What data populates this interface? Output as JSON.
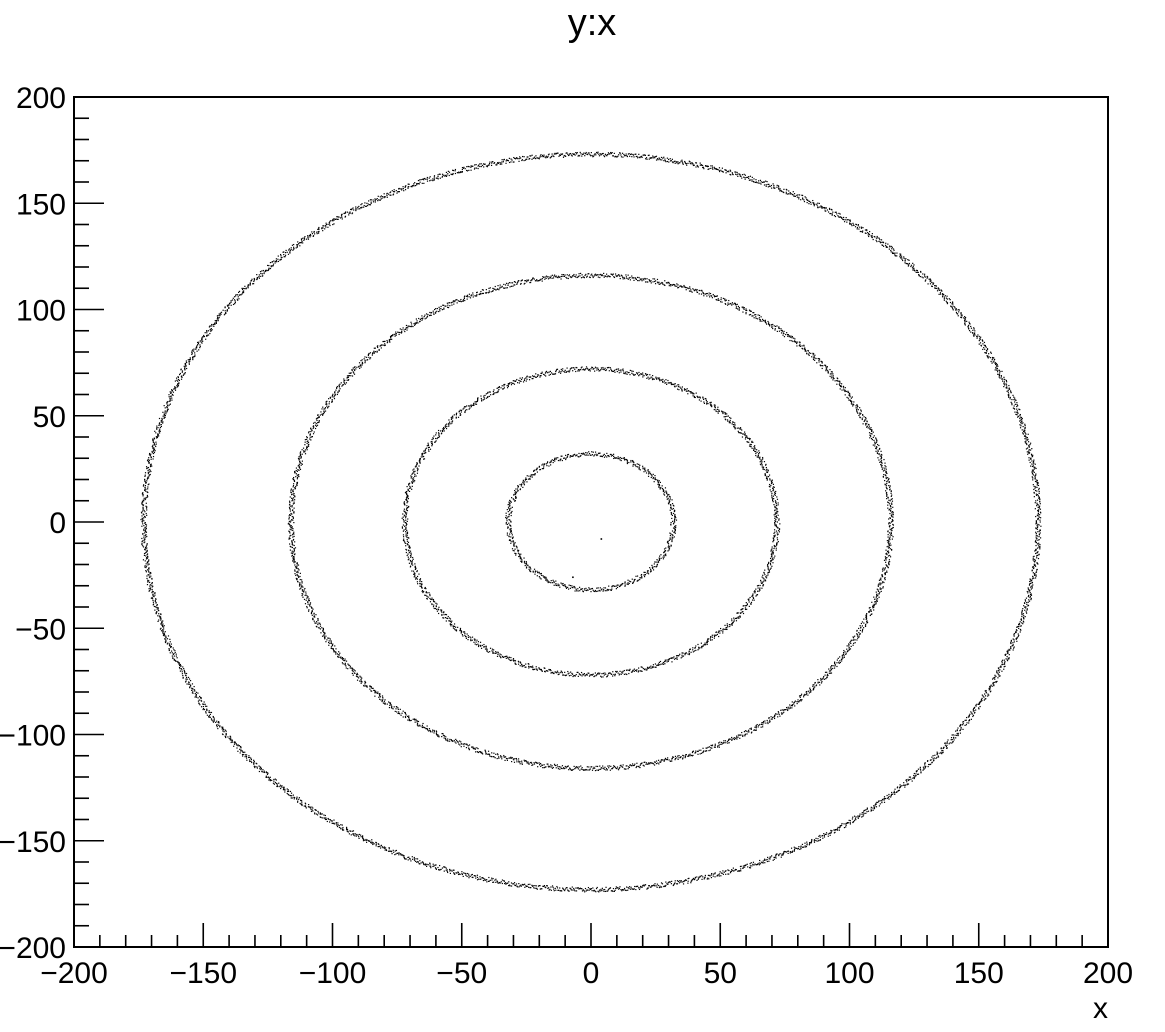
{
  "chart_data": {
    "type": "scatter",
    "title": "y:x",
    "xlabel": "x",
    "ylabel": "",
    "xlim": [
      -200,
      200
    ],
    "ylim": [
      -200,
      200
    ],
    "x_ticks": [
      -200,
      -150,
      -100,
      -50,
      0,
      50,
      100,
      150,
      200
    ],
    "x_tick_labels": [
      "−200",
      "−150",
      "−100",
      "−50",
      "0",
      "50",
      "100",
      "150",
      "200"
    ],
    "y_ticks": [
      200,
      150,
      100,
      50,
      0,
      -50,
      -100,
      -150,
      -200
    ],
    "y_tick_labels": [
      "200",
      "150",
      "100",
      "50",
      "0",
      "−50",
      "−100",
      "−150",
      "−200"
    ],
    "grid": false,
    "legend": "none",
    "marker_color": "#000000",
    "rings": [
      {
        "radius": 32,
        "x_center": 0,
        "y_center": 0
      },
      {
        "radius": 72,
        "x_center": 0,
        "y_center": 0
      },
      {
        "radius": 116,
        "x_center": 0,
        "y_center": 0
      },
      {
        "radius": 173,
        "x_center": 0,
        "y_center": 0
      }
    ],
    "isolated_points": [
      {
        "x": 4,
        "y": -8
      },
      {
        "x": -7,
        "y": -26
      }
    ]
  }
}
